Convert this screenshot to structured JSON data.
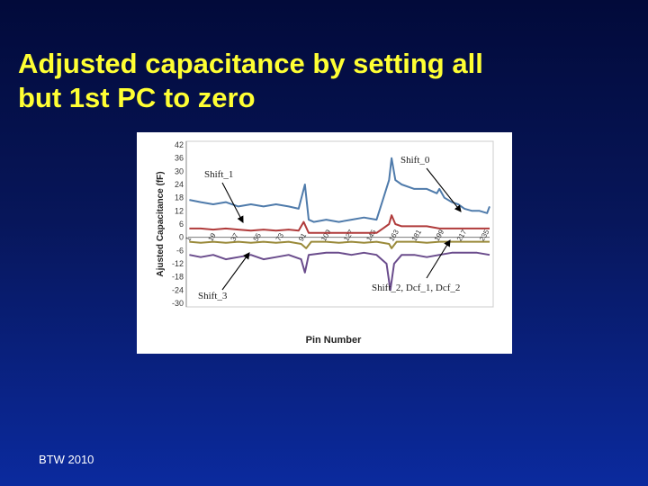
{
  "slide": {
    "title_line1": "Adjusted capacitance by setting all",
    "title_line2": "but 1st PC to zero",
    "footer": "BTW 2010",
    "title_color": "#ffff33",
    "background": "#07165a"
  },
  "chart_data": {
    "type": "line",
    "title": "",
    "xlabel": "Pin Number",
    "ylabel": "Ajusted Capacitance (fF)",
    "ylim": [
      -30,
      42
    ],
    "yticks": [
      42,
      36,
      30,
      24,
      18,
      12,
      6,
      0,
      -6,
      -12,
      -18,
      -24,
      -30
    ],
    "xticks": [
      "1",
      "19",
      "37",
      "55",
      "73",
      "91",
      "109",
      "127",
      "145",
      "163",
      "181",
      "199",
      "217",
      "235"
    ],
    "grid": false,
    "x_max": 240,
    "series": [
      {
        "name": "Shift_0",
        "color": "#4f7bab",
        "points": [
          [
            1,
            17
          ],
          [
            10,
            16
          ],
          [
            20,
            15
          ],
          [
            30,
            16
          ],
          [
            40,
            14
          ],
          [
            50,
            15
          ],
          [
            60,
            14
          ],
          [
            70,
            15
          ],
          [
            80,
            14
          ],
          [
            88,
            13
          ],
          [
            93,
            24
          ],
          [
            96,
            8
          ],
          [
            100,
            7
          ],
          [
            110,
            8
          ],
          [
            120,
            7
          ],
          [
            130,
            8
          ],
          [
            140,
            9
          ],
          [
            150,
            8
          ],
          [
            155,
            17
          ],
          [
            160,
            26
          ],
          [
            162,
            36
          ],
          [
            165,
            26
          ],
          [
            170,
            24
          ],
          [
            180,
            22
          ],
          [
            190,
            22
          ],
          [
            198,
            20
          ],
          [
            200,
            22
          ],
          [
            204,
            18
          ],
          [
            210,
            16
          ],
          [
            215,
            15
          ],
          [
            220,
            13
          ],
          [
            226,
            12
          ],
          [
            232,
            12
          ],
          [
            238,
            11
          ],
          [
            240,
            14
          ]
        ]
      },
      {
        "name": "Shift_1",
        "color": "#b03b3b",
        "points": [
          [
            1,
            4
          ],
          [
            10,
            4
          ],
          [
            20,
            3.5
          ],
          [
            30,
            4
          ],
          [
            40,
            3.5
          ],
          [
            50,
            3
          ],
          [
            60,
            3.5
          ],
          [
            70,
            3
          ],
          [
            80,
            3.5
          ],
          [
            88,
            3
          ],
          [
            92,
            7
          ],
          [
            96,
            2
          ],
          [
            100,
            2
          ],
          [
            110,
            2
          ],
          [
            120,
            2
          ],
          [
            130,
            2
          ],
          [
            140,
            2
          ],
          [
            150,
            2
          ],
          [
            155,
            4
          ],
          [
            160,
            6
          ],
          [
            162,
            10
          ],
          [
            165,
            6
          ],
          [
            170,
            5
          ],
          [
            180,
            5
          ],
          [
            190,
            5
          ],
          [
            200,
            4
          ],
          [
            210,
            4
          ],
          [
            220,
            4
          ],
          [
            230,
            4
          ],
          [
            240,
            4
          ]
        ]
      },
      {
        "name": "Shift_2, Dcf_1, Dcf_2",
        "color": "#9a8a3a",
        "points": [
          [
            1,
            -2
          ],
          [
            10,
            -2.5
          ],
          [
            20,
            -2
          ],
          [
            30,
            -2.5
          ],
          [
            40,
            -2
          ],
          [
            50,
            -2.5
          ],
          [
            60,
            -2
          ],
          [
            70,
            -2.5
          ],
          [
            80,
            -2
          ],
          [
            90,
            -3
          ],
          [
            94,
            -5
          ],
          [
            98,
            -2
          ],
          [
            110,
            -2
          ],
          [
            120,
            -2.5
          ],
          [
            130,
            -2
          ],
          [
            140,
            -2.5
          ],
          [
            150,
            -2
          ],
          [
            160,
            -3
          ],
          [
            162,
            -5
          ],
          [
            166,
            -2
          ],
          [
            180,
            -2
          ],
          [
            190,
            -2.5
          ],
          [
            200,
            -2
          ],
          [
            210,
            -2
          ],
          [
            220,
            -2
          ],
          [
            230,
            -2
          ],
          [
            240,
            -2
          ]
        ]
      },
      {
        "name": "Shift_3",
        "color": "#6a4c8c",
        "points": [
          [
            1,
            -8
          ],
          [
            10,
            -9
          ],
          [
            20,
            -8
          ],
          [
            30,
            -10
          ],
          [
            40,
            -9
          ],
          [
            50,
            -8
          ],
          [
            60,
            -10
          ],
          [
            70,
            -9
          ],
          [
            80,
            -8
          ],
          [
            90,
            -10
          ],
          [
            93,
            -16
          ],
          [
            96,
            -8
          ],
          [
            110,
            -7
          ],
          [
            120,
            -7
          ],
          [
            130,
            -8
          ],
          [
            140,
            -7
          ],
          [
            150,
            -8
          ],
          [
            158,
            -12
          ],
          [
            161,
            -24
          ],
          [
            164,
            -12
          ],
          [
            170,
            -8
          ],
          [
            180,
            -8
          ],
          [
            190,
            -9
          ],
          [
            200,
            -8
          ],
          [
            210,
            -7
          ],
          [
            220,
            -7
          ],
          [
            230,
            -7
          ],
          [
            240,
            -8
          ]
        ]
      }
    ],
    "annotations": [
      {
        "text": "Shift_1",
        "series": "Shift_1"
      },
      {
        "text": "Shift_0",
        "series": "Shift_0"
      },
      {
        "text": "Shift_3",
        "series": "Shift_3"
      },
      {
        "text": "Shift_2, Dcf_1, Dcf_2",
        "series": "Shift_2, Dcf_1, Dcf_2"
      }
    ]
  }
}
